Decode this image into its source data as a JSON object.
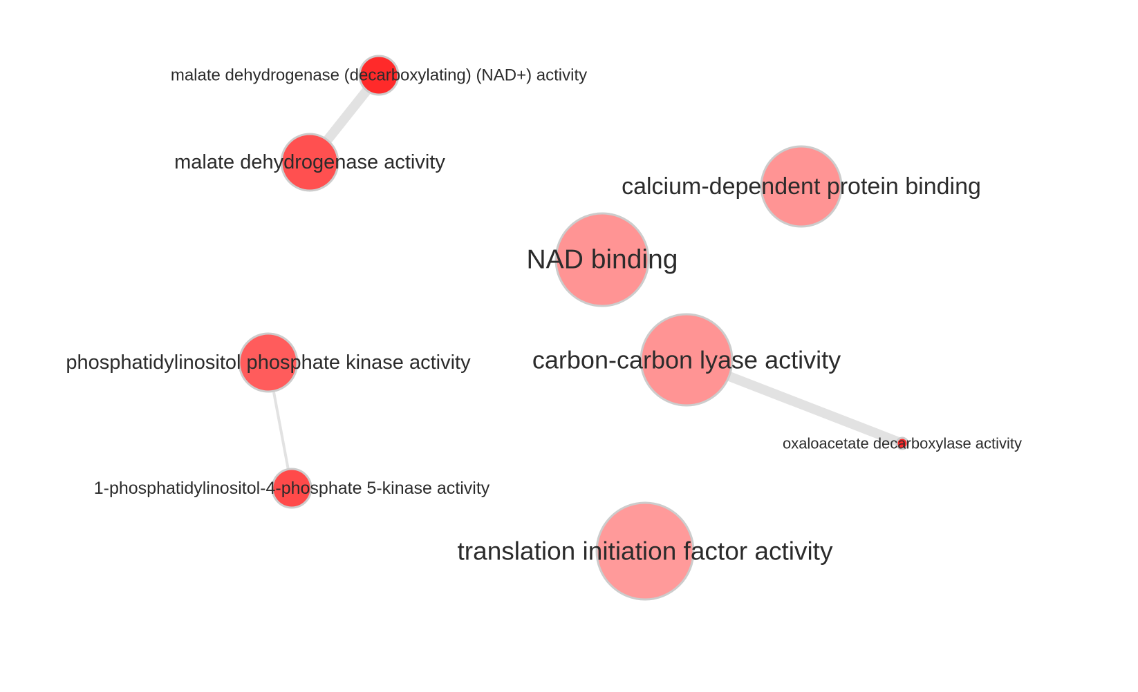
{
  "graph": {
    "nodes": [
      {
        "id": "malate-dehydrogenase-decarboxylating-nad",
        "label": "malate dehydrogenase (decarboxylating) (NAD+) activity",
        "color": "#ff2a2a"
      },
      {
        "id": "malate-dehydrogenase",
        "label": "malate dehydrogenase activity",
        "color": "#ff5050"
      },
      {
        "id": "calcium-dependent-protein-binding",
        "label": "calcium-dependent protein binding",
        "color": "#ff9494"
      },
      {
        "id": "nad-binding",
        "label": "NAD binding",
        "color": "#ff9494"
      },
      {
        "id": "phosphatidylinositol-phosphate-kinase",
        "label": "phosphatidylinositol phosphate kinase activity",
        "color": "#ff5c5c"
      },
      {
        "id": "carbon-carbon-lyase",
        "label": "carbon-carbon lyase activity",
        "color": "#ff9494"
      },
      {
        "id": "oxaloacetate-decarboxylase",
        "label": "oxaloacetate decarboxylase activity",
        "color": "#ff2a2a"
      },
      {
        "id": "1-phosphatidylinositol-4-phosphate-5-kinase",
        "label": "1-phosphatidylinositol-4-phosphate 5-kinase activity",
        "color": "#ff4a4a"
      },
      {
        "id": "translation-initiation-factor",
        "label": "translation initiation factor activity",
        "color": "#ff9a9a"
      }
    ],
    "edges": [
      {
        "source": "malate-dehydrogenase-decarboxylating-nad",
        "target": "malate-dehydrogenase",
        "weight": "strong"
      },
      {
        "source": "carbon-carbon-lyase",
        "target": "oxaloacetate-decarboxylase",
        "weight": "strong"
      },
      {
        "source": "phosphatidylinositol-phosphate-kinase",
        "target": "1-phosphatidylinositol-4-phosphate-5-kinase",
        "weight": "weak"
      }
    ],
    "edge_color": "#e2e2e2",
    "node_border_color": "#cccccc",
    "label_color": "#2b2b2b"
  }
}
